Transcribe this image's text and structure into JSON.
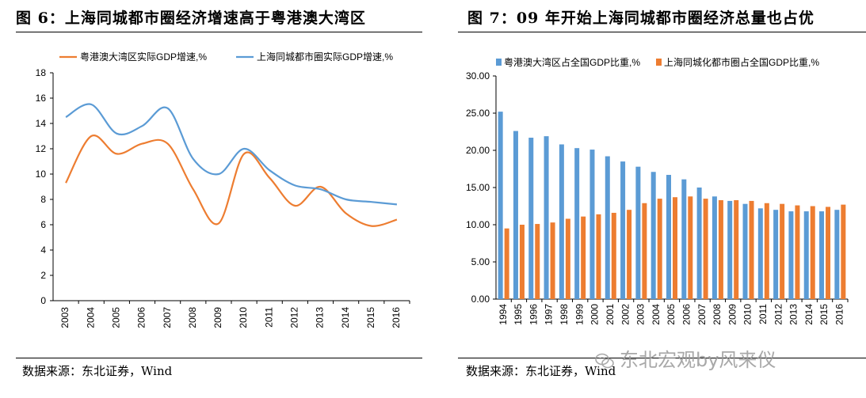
{
  "watermark": {
    "text": "东北宏观by风来仪",
    "icon": "wechat-icon"
  },
  "chart_data": [
    {
      "type": "line",
      "title": "图 6：上海同城都市圈经济增速高于粤港澳大湾区",
      "source": "数据来源：东北证券，Wind",
      "categories": [
        "2003",
        "2004",
        "2005",
        "2006",
        "2007",
        "2008",
        "2009",
        "2010",
        "2011",
        "2012",
        "2013",
        "2014",
        "2015",
        "2016"
      ],
      "ylim": [
        0,
        18
      ],
      "yticks": [
        "0",
        "2",
        "4",
        "6",
        "8",
        "10",
        "12",
        "14",
        "16",
        "18"
      ],
      "legend_position": "top",
      "series": [
        {
          "name": "粤港澳大湾区实际GDP增速,%",
          "color": "#ED7D31",
          "values": [
            9.3,
            13.0,
            11.6,
            12.4,
            12.4,
            8.8,
            6.1,
            11.6,
            9.7,
            7.5,
            9.0,
            6.9,
            5.9,
            6.4
          ]
        },
        {
          "name": "上海同城都市圈实际GDP增速,%",
          "color": "#5B9BD5",
          "values": [
            14.5,
            15.5,
            13.2,
            13.8,
            15.2,
            11.2,
            10.0,
            12.0,
            10.3,
            9.1,
            8.8,
            8.0,
            7.8,
            7.6
          ]
        }
      ]
    },
    {
      "type": "bar",
      "title": "图 7：09 年开始上海同城都市圈经济总量也占优",
      "source": "数据来源：东北证券，Wind",
      "categories": [
        "1994",
        "1995",
        "1996",
        "1997",
        "1998",
        "1999",
        "2000",
        "2001",
        "2002",
        "2003",
        "2004",
        "2005",
        "2006",
        "2007",
        "2008",
        "2009",
        "2010",
        "2011",
        "2012",
        "2013",
        "2014",
        "2015",
        "2016"
      ],
      "ylim": [
        0,
        30
      ],
      "yticks": [
        "0.00",
        "5.00",
        "10.00",
        "15.00",
        "20.00",
        "25.00",
        "30.00"
      ],
      "legend_position": "top",
      "series": [
        {
          "name": "粤港澳大湾区占全国GDP比重,%",
          "color": "#5B9BD5",
          "values": [
            25.2,
            22.6,
            21.7,
            21.9,
            20.8,
            20.3,
            20.1,
            19.2,
            18.5,
            17.8,
            17.1,
            16.7,
            16.1,
            15.0,
            13.8,
            13.2,
            12.8,
            12.2,
            12.0,
            11.8,
            11.8,
            11.8,
            12.0
          ]
        },
        {
          "name": "上海同城化都市圈占全国GDP比重,%",
          "color": "#ED7D31",
          "values": [
            9.5,
            10.0,
            10.1,
            10.3,
            10.8,
            11.1,
            11.4,
            11.6,
            12.0,
            12.9,
            13.5,
            13.7,
            13.8,
            13.5,
            13.3,
            13.3,
            13.2,
            12.9,
            12.8,
            12.6,
            12.5,
            12.4,
            12.7
          ]
        }
      ]
    }
  ]
}
